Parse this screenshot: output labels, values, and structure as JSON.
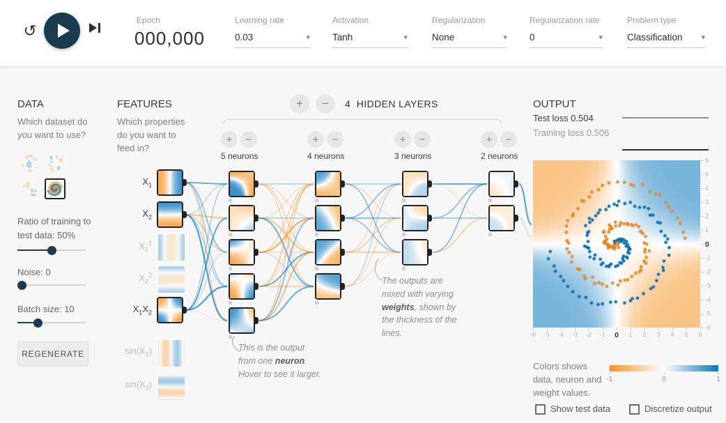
{
  "icons": {
    "reset": "↺",
    "caret": "▾",
    "plus": "+",
    "minus": "−"
  },
  "header": {
    "epoch": {
      "label": "Epoch",
      "value": "000,000"
    },
    "dropdowns": [
      {
        "id": "learning-rate",
        "label": "Learning rate",
        "value": "0.03"
      },
      {
        "id": "activation",
        "label": "Activation",
        "value": "Tanh"
      },
      {
        "id": "regularization",
        "label": "Regularization",
        "value": "None"
      },
      {
        "id": "regularization-rate",
        "label": "Regularization rate",
        "value": "0"
      },
      {
        "id": "problem-type",
        "label": "Problem type",
        "value": "Classification"
      }
    ]
  },
  "data_panel": {
    "title": "DATA",
    "caption": "Which dataset do you want to use?",
    "datasets": [
      {
        "name": "circle",
        "selected": false
      },
      {
        "name": "exclusive-or",
        "selected": false
      },
      {
        "name": "gaussian",
        "selected": false
      },
      {
        "name": "spiral",
        "selected": true
      }
    ],
    "ratio_label": "Ratio of training to test data: 50%",
    "ratio_percent": 50,
    "noise_label": "Noise: 0",
    "noise_percent": 0,
    "batch_label": "Batch size: 10",
    "batch_percent": 30,
    "regenerate_label": "REGENERATE"
  },
  "features_panel": {
    "title": "FEATURES",
    "caption": "Which properties do you want to feed in?",
    "items": [
      {
        "id": "x1",
        "parts": [
          {
            "t": "X"
          },
          {
            "t": "1",
            "sub": true
          }
        ],
        "selected": true,
        "pattern": "x1"
      },
      {
        "id": "x2",
        "parts": [
          {
            "t": "X"
          },
          {
            "t": "2",
            "sub": true
          }
        ],
        "selected": true,
        "pattern": "x2"
      },
      {
        "id": "x1-squared",
        "parts": [
          {
            "t": "X"
          },
          {
            "t": "1",
            "sub": true
          },
          {
            "t": "2",
            "sup": true
          }
        ],
        "selected": false,
        "pattern": "x1sq"
      },
      {
        "id": "x2-squared",
        "parts": [
          {
            "t": "X"
          },
          {
            "t": "2",
            "sub": true
          },
          {
            "t": "2",
            "sup": true
          }
        ],
        "selected": false,
        "pattern": "x2sq"
      },
      {
        "id": "x1x2",
        "parts": [
          {
            "t": "X"
          },
          {
            "t": "1",
            "sub": true
          },
          {
            "t": "X"
          },
          {
            "t": "2",
            "sub": true
          }
        ],
        "selected": true,
        "pattern": "x1x2"
      },
      {
        "id": "sin-x1",
        "parts": [
          {
            "t": "sin(X"
          },
          {
            "t": "1",
            "sub": true
          },
          {
            "t": ")"
          }
        ],
        "selected": false,
        "pattern": "sinx1"
      },
      {
        "id": "sin-x2",
        "parts": [
          {
            "t": "sin(X"
          },
          {
            "t": "2",
            "sub": true
          },
          {
            "t": ")"
          }
        ],
        "selected": false,
        "pattern": "sinx2"
      }
    ]
  },
  "network": {
    "layers_count": "4",
    "layers_title": "HIDDEN LAYERS",
    "layers": [
      {
        "label": "5 neurons",
        "count": 5
      },
      {
        "label": "4 neurons",
        "count": 4
      },
      {
        "label": "3 neurons",
        "count": 3
      },
      {
        "label": "2 neurons",
        "count": 2
      }
    ]
  },
  "annotations": {
    "neuron_note": {
      "pre": "This is the output from one ",
      "bold": "neuron",
      "post": ". Hover to see it larger."
    },
    "weights_note": {
      "pre": "The outputs are mixed with varying ",
      "bold": "weights",
      "post": ", shown by the thickness of the lines."
    }
  },
  "output_panel": {
    "title": "OUTPUT",
    "test_loss": "Test loss 0.504",
    "training_loss": "Training loss 0.506",
    "x_ticks": [
      "-6",
      "-5",
      "-4",
      "-3",
      "-2",
      "-1",
      "0",
      "1",
      "2",
      "3",
      "4",
      "5",
      "6"
    ],
    "y_ticks": [
      "6",
      "5",
      "4",
      "3",
      "2",
      "1",
      "0",
      "-1",
      "-2",
      "-3",
      "-4",
      "-5",
      "-6"
    ],
    "colorbar_caption": "Colors shows data, neuron and weight values.",
    "colorbar_ticks": [
      "-1",
      "0",
      "1"
    ],
    "checkboxes": [
      {
        "label": "Show test data",
        "checked": false
      },
      {
        "label": "Discretize output",
        "checked": false
      }
    ],
    "colors": {
      "positive": "#0877bd",
      "negative": "#f59322"
    }
  }
}
